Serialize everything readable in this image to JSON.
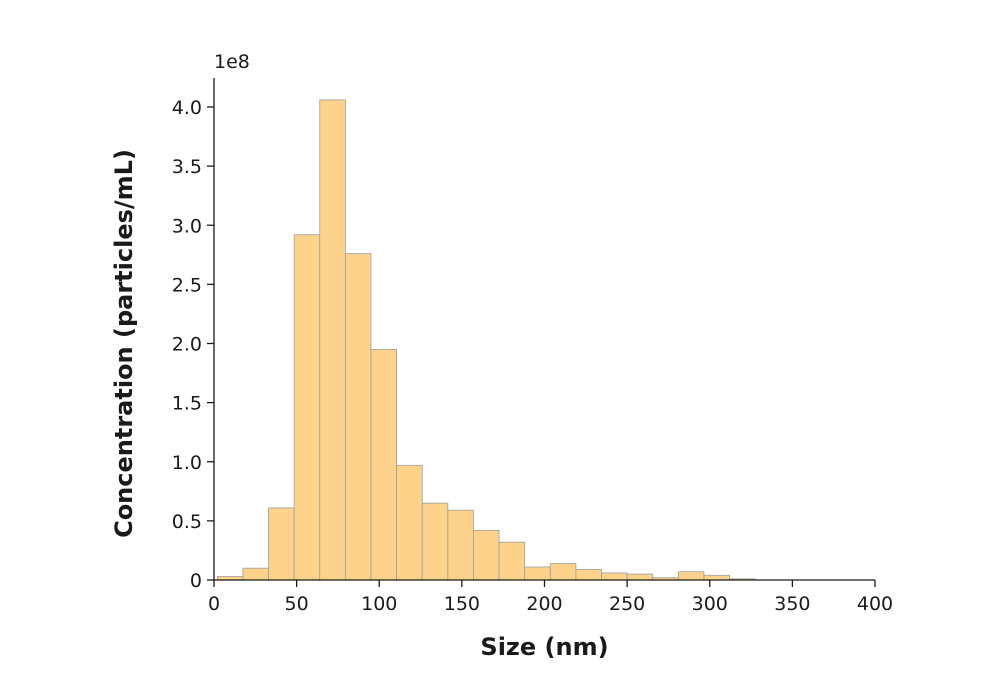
{
  "chart_data": {
    "type": "bar",
    "histogram": true,
    "xlabel": "Size (nm)",
    "ylabel": "Concentration (particles/mL)",
    "y_multiplier": "1e8",
    "xlim": [
      0,
      400
    ],
    "ylim": [
      0,
      4.2
    ],
    "x_ticks": [
      "0",
      "50",
      "100",
      "150",
      "200",
      "250",
      "300",
      "350",
      "400"
    ],
    "x_tick_values": [
      0,
      50,
      100,
      150,
      200,
      250,
      300,
      350,
      400
    ],
    "y_ticks": [
      "0",
      "0.5",
      "1.0",
      "1.5",
      "2.0",
      "2.5",
      "3.0",
      "3.5",
      "4.0"
    ],
    "y_tick_values": [
      0,
      0.5,
      1.0,
      1.5,
      2.0,
      2.5,
      3.0,
      3.5,
      4.0
    ],
    "bin_edges": [
      2,
      17.5,
      33,
      48.5,
      64,
      79.5,
      95,
      110.5,
      126,
      141.5,
      157,
      172.5,
      188,
      203.5,
      219,
      234.5,
      250,
      265.5,
      281,
      296.5,
      312,
      327.5
    ],
    "values": [
      0.03,
      0.1,
      0.61,
      2.92,
      4.06,
      2.76,
      1.95,
      0.97,
      0.65,
      0.59,
      0.42,
      0.32,
      0.11,
      0.14,
      0.09,
      0.06,
      0.05,
      0.02,
      0.07,
      0.04,
      0.01
    ],
    "grid": false,
    "colors": {
      "bar_fill": "#fdd28a",
      "bar_edge": "#9e9e9e",
      "axis": "#1a1a1a"
    }
  }
}
